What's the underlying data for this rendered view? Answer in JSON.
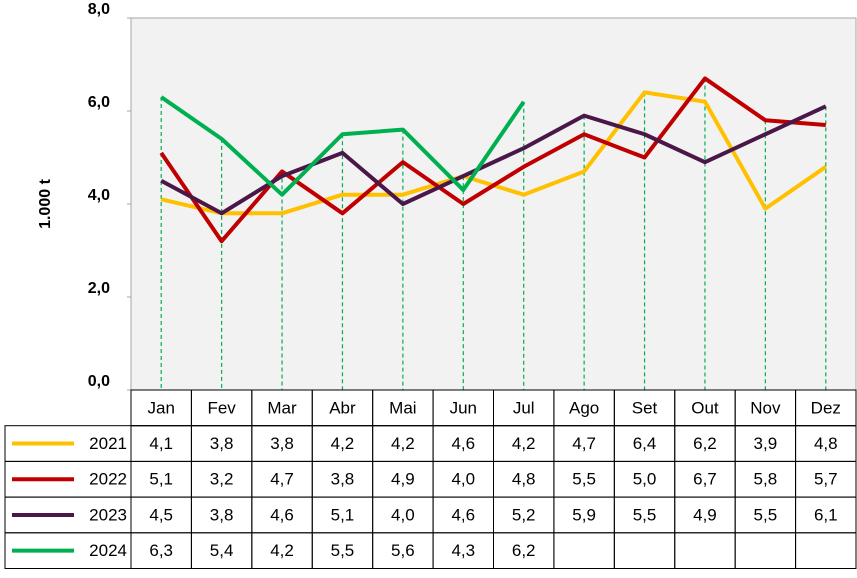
{
  "chart_data": {
    "type": "line",
    "y_label": "1.000 t",
    "categories": [
      "Jan",
      "Fev",
      "Mar",
      "Abr",
      "Mai",
      "Jun",
      "Jul",
      "Ago",
      "Set",
      "Out",
      "Nov",
      "Dez"
    ],
    "series": [
      {
        "name": "2021",
        "color": "#ffc000",
        "values": [
          4.1,
          3.8,
          3.8,
          4.2,
          4.2,
          4.6,
          4.2,
          4.7,
          6.4,
          6.2,
          3.9,
          4.8
        ],
        "value_labels": [
          "4,1",
          "3,8",
          "3,8",
          "4,2",
          "4,2",
          "4,6",
          "4,2",
          "4,7",
          "6,4",
          "6,2",
          "3,9",
          "4,8"
        ]
      },
      {
        "name": "2022",
        "color": "#c00000",
        "values": [
          5.1,
          3.2,
          4.7,
          3.8,
          4.9,
          4.0,
          4.8,
          5.5,
          5.0,
          6.7,
          5.8,
          5.7
        ],
        "value_labels": [
          "5,1",
          "3,2",
          "4,7",
          "3,8",
          "4,9",
          "4,0",
          "4,8",
          "5,5",
          "5,0",
          "6,7",
          "5,8",
          "5,7"
        ]
      },
      {
        "name": "2023",
        "color": "#4b1748",
        "values": [
          4.5,
          3.8,
          4.6,
          5.1,
          4.0,
          4.6,
          5.2,
          5.9,
          5.5,
          4.9,
          5.5,
          6.1
        ],
        "value_labels": [
          "4,5",
          "3,8",
          "4,6",
          "5,1",
          "4,0",
          "4,6",
          "5,2",
          "5,9",
          "5,5",
          "4,9",
          "5,5",
          "6,1"
        ]
      },
      {
        "name": "2024",
        "color": "#00b050",
        "values": [
          6.3,
          5.4,
          4.2,
          5.5,
          5.6,
          4.3,
          6.2,
          null,
          null,
          null,
          null,
          null
        ],
        "value_labels": [
          "6,3",
          "5,4",
          "4,2",
          "5,5",
          "5,6",
          "4,3",
          "6,2",
          null,
          null,
          null,
          null,
          null
        ]
      }
    ],
    "ylim": [
      0,
      8
    ],
    "yticks": [
      {
        "value": 0,
        "label": "0,0"
      },
      {
        "value": 2,
        "label": "2,0"
      },
      {
        "value": 4,
        "label": "4,0"
      },
      {
        "value": 6,
        "label": "6,0"
      },
      {
        "value": 8,
        "label": "8,0"
      }
    ],
    "drop_lines": true,
    "drop_line_color": "#00b050"
  }
}
